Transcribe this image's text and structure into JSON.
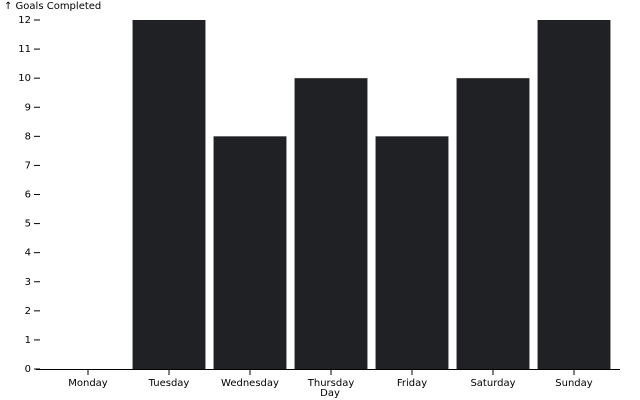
{
  "chart_data": {
    "type": "bar",
    "y_label": "↑ Goals Completed",
    "x_label": "Day",
    "categories": [
      "Monday",
      "Tuesday",
      "Wednesday",
      "Thursday",
      "Friday",
      "Saturday",
      "Sunday"
    ],
    "values": [
      0,
      12,
      8,
      10,
      8,
      10,
      12
    ],
    "color": "#1f2125",
    "ylim": [
      0,
      12
    ],
    "yticks": [
      0,
      1,
      2,
      3,
      4,
      5,
      6,
      7,
      8,
      9,
      10,
      11,
      12
    ]
  }
}
